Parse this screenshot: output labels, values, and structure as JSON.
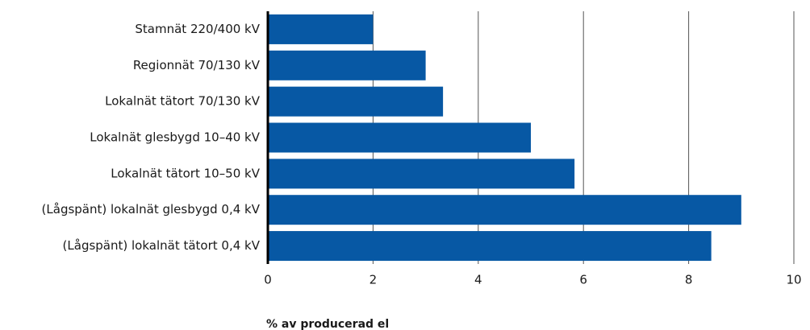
{
  "chart_data": {
    "type": "bar",
    "orientation": "horizontal",
    "categories": [
      "Stamnät 220/400 kV",
      "Regionnät 70/130 kV",
      "Lokalnät tätort 70/130 kV",
      "Lokalnät glesbygd 10–40 kV",
      "Lokalnät tätort 10–50 kV",
      "(Lågspänt) lokalnät glesbygd 0,4 kV",
      "(Lågspänt) lokalnät tätort 0,4 kV"
    ],
    "values": [
      2.0,
      3.0,
      3.33,
      5.0,
      5.83,
      9.0,
      8.43
    ],
    "color": "#0758a4",
    "xlabel": "% av producerad el",
    "xlim": [
      0,
      10
    ],
    "xticks": [
      0,
      2,
      4,
      6,
      8,
      10
    ],
    "grid": true
  }
}
